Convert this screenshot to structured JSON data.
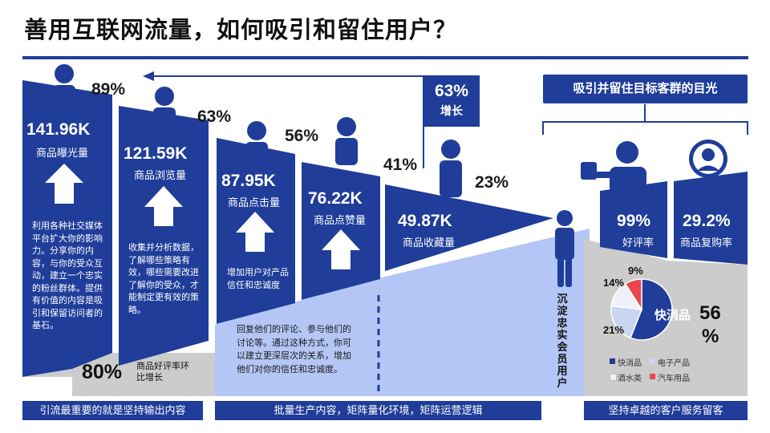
{
  "title": "善用互联网流量，如何吸引和留住用户？",
  "funnel": [
    {
      "value": "141.96K",
      "label": "商品曝光量",
      "rate": "89%"
    },
    {
      "value": "121.59K",
      "label": "商品浏览量",
      "rate": "63%"
    },
    {
      "value": "87.95K",
      "label": "商品点击量",
      "rate": "56%"
    },
    {
      "value": "76.22K",
      "label": "商品点赞量",
      "rate": "41%"
    },
    {
      "value": "49.87K",
      "label": "商品收藏量",
      "rate": "23%"
    }
  ],
  "growth_badge": {
    "percent": "63%",
    "label": "增长"
  },
  "descriptions": {
    "col1": "利用各种社交媒体平台扩大你的影响力。分享你的内容，与你的受众互动，建立一个忠实的粉丝群体。提供有价值的内容是吸引和保留访问者的基石。",
    "col2": "收集并分析数据，了解哪些策略有效，哪些需要改进了解你的受众，才能制定更有效的策略。",
    "col3": "增加用户对产品信任和忠诚度",
    "col4": "回复他们的评论、参与他们的讨论等。通过这种方式，你可以建立更深层次的关系，增加他们对你的信任和忠诚度。"
  },
  "rating_growth": {
    "value": "80%",
    "label": "商品好评率环比增长"
  },
  "right_panel": {
    "header": "吸引并留住目标客群的目光",
    "good_rate": {
      "value": "99%",
      "label": "好评率"
    },
    "repurchase": {
      "value": "29.2%",
      "label": "商品复购率"
    },
    "vertical_label": "沉淀忠实会员用户"
  },
  "chart_data": {
    "type": "pie",
    "slices": [
      {
        "name": "快消品",
        "value": 56,
        "label": "快消品",
        "color": "#1f3d99"
      },
      {
        "name": "电子产品",
        "value": 21,
        "label": "21%",
        "color": "#c9d6f2"
      },
      {
        "name": "酒水类",
        "value": 14,
        "label": "14%",
        "color": "#eef1f8"
      },
      {
        "name": "汽车用品",
        "value": 9,
        "label": "9%",
        "color": "#e8474e"
      }
    ],
    "callout": {
      "value": "56",
      "unit": "%"
    },
    "legend": [
      "快消品",
      "电子产品",
      "酒水类",
      "汽车用品"
    ]
  },
  "footers": [
    "引流最重要的就是坚持输出内容",
    "批量生产内容，矩阵量化环境，矩阵运营逻辑",
    "坚持卓越的客户服务留客"
  ],
  "colors": {
    "primary": "#1f3d99",
    "light": "#b3c6f5",
    "gray": "#cccccc",
    "red": "#e8474e"
  }
}
